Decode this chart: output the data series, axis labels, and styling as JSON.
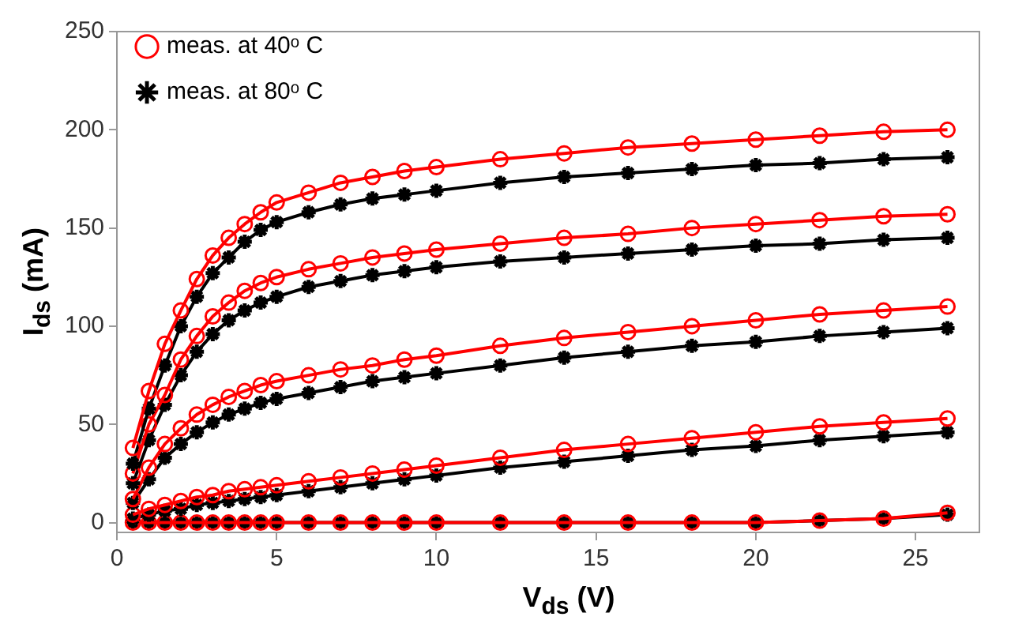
{
  "chart_data": {
    "type": "line",
    "xlabel": "V$_{ds}$ (V)",
    "ylabel": "I$_{ds}$ (mA)",
    "legend": "top left",
    "x": [
      0.5,
      1,
      1.5,
      2,
      2.5,
      3,
      3.5,
      4,
      4.5,
      5,
      6,
      7,
      8,
      9,
      10,
      12,
      14,
      16,
      18,
      20,
      22,
      24,
      26
    ],
    "xlim": [
      0,
      27
    ],
    "xticks": [
      0,
      5,
      10,
      15,
      20,
      25
    ],
    "ylim": [
      -5,
      250
    ],
    "yticks": [
      0,
      50,
      100,
      150,
      200,
      250
    ],
    "series": [
      {
        "name": "meas. at 40ᵒ C",
        "color": "#ff0000",
        "marker": "circle",
        "values": [
          38,
          67,
          91,
          108,
          124,
          136,
          145,
          152,
          158,
          163,
          168,
          173,
          176,
          179,
          181,
          185,
          188,
          191,
          193,
          195,
          197,
          199,
          200
        ]
      },
      {
        "name": "meas. at 80ᵒ C",
        "color": "#000000",
        "marker": "cross",
        "values": [
          30,
          58,
          80,
          100,
          115,
          127,
          135,
          143,
          149,
          153,
          158,
          162,
          165,
          167,
          169,
          173,
          176,
          178,
          180,
          182,
          183,
          185,
          186
        ]
      },
      {
        "color": "#ff0000",
        "marker": "circle",
        "values": [
          25,
          50,
          65,
          83,
          95,
          105,
          112,
          118,
          122,
          125,
          129,
          132,
          135,
          137,
          139,
          142,
          145,
          147,
          150,
          152,
          154,
          156,
          157
        ]
      },
      {
        "color": "#000000",
        "marker": "cross",
        "values": [
          20,
          42,
          60,
          75,
          87,
          96,
          103,
          108,
          112,
          115,
          120,
          123,
          126,
          128,
          130,
          133,
          135,
          137,
          139,
          141,
          142,
          144,
          145
        ]
      },
      {
        "color": "#ff0000",
        "marker": "circle",
        "values": [
          12,
          28,
          40,
          48,
          55,
          60,
          64,
          67,
          70,
          72,
          75,
          78,
          80,
          83,
          85,
          90,
          94,
          97,
          100,
          103,
          106,
          108,
          110
        ]
      },
      {
        "color": "#000000",
        "marker": "cross",
        "values": [
          10,
          22,
          33,
          40,
          46,
          51,
          55,
          58,
          61,
          63,
          66,
          69,
          72,
          74,
          76,
          80,
          84,
          87,
          90,
          92,
          95,
          97,
          99
        ]
      },
      {
        "color": "#ff0000",
        "marker": "circle",
        "values": [
          4,
          7,
          9,
          11,
          13,
          14,
          16,
          17,
          18,
          19,
          21,
          23,
          25,
          27,
          29,
          33,
          37,
          40,
          43,
          46,
          49,
          51,
          53
        ]
      },
      {
        "color": "#000000",
        "marker": "cross",
        "values": [
          2,
          4,
          6,
          7,
          9,
          10,
          11,
          12,
          13,
          14,
          16,
          18,
          20,
          22,
          24,
          28,
          31,
          34,
          37,
          39,
          42,
          44,
          46
        ]
      },
      {
        "color": "#ff0000",
        "marker": "circle",
        "values": [
          0,
          0,
          0,
          0,
          0,
          0,
          0,
          0,
          0,
          0,
          0,
          0,
          0,
          0,
          0,
          0,
          0,
          0,
          0,
          0,
          1,
          2,
          5
        ]
      },
      {
        "color": "#000000",
        "marker": "cross",
        "values": [
          0,
          0,
          0,
          0,
          0,
          0,
          0,
          0,
          0,
          0,
          0,
          0,
          0,
          0,
          0,
          0,
          0,
          0,
          0,
          0,
          1,
          2,
          4
        ]
      }
    ]
  }
}
